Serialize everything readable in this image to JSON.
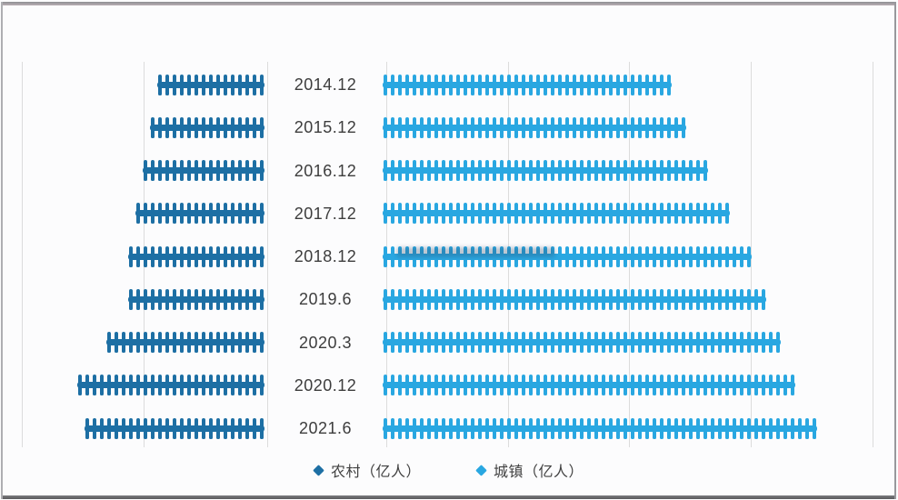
{
  "chart_data": {
    "type": "bar",
    "variant": "pictogram-tornado",
    "orientation": "horizontal",
    "categories": [
      "2014.12",
      "2015.12",
      "2016.12",
      "2017.12",
      "2018.12",
      "2019.6",
      "2020.3",
      "2020.12",
      "2021.6"
    ],
    "series": [
      {
        "name": "农村（亿人）",
        "side": "left",
        "color": "#1d6fa4",
        "values": [
          1.78,
          1.95,
          2.01,
          2.09,
          2.22,
          2.25,
          2.55,
          3.09,
          2.97
        ]
      },
      {
        "name": "城镇（亿人）",
        "side": "right",
        "color": "#29a7e1",
        "values": [
          4.71,
          4.93,
          5.31,
          5.63,
          6.07,
          6.3,
          6.49,
          6.8,
          7.14
        ]
      }
    ],
    "unit": "亿人",
    "pictogram": {
      "icon": "person-icon",
      "approx_value_per_icon_yi": 0.118
    },
    "axis": {
      "values_labeled": false,
      "gridlines_visible": true,
      "gridline_step_units": 2,
      "left_axis_range": [
        0,
        4
      ],
      "right_axis_range": [
        0,
        8
      ]
    },
    "legend_position": "bottom"
  },
  "legend": {
    "items": [
      {
        "label": "农村（亿人）",
        "marker": "diamond-icon",
        "color": "#1d6fa4"
      },
      {
        "label": "城镇（亿人）",
        "marker": "diamond-icon",
        "color": "#29a7e1"
      }
    ]
  },
  "colors": {
    "rural_bar": "#1d6fa4",
    "urban_bar": "#29a7e1",
    "gridline": "#dcdcdc",
    "label_text": "#3d3d3d",
    "background": "#fcfcfd",
    "frame_border": "#8e8e92"
  }
}
